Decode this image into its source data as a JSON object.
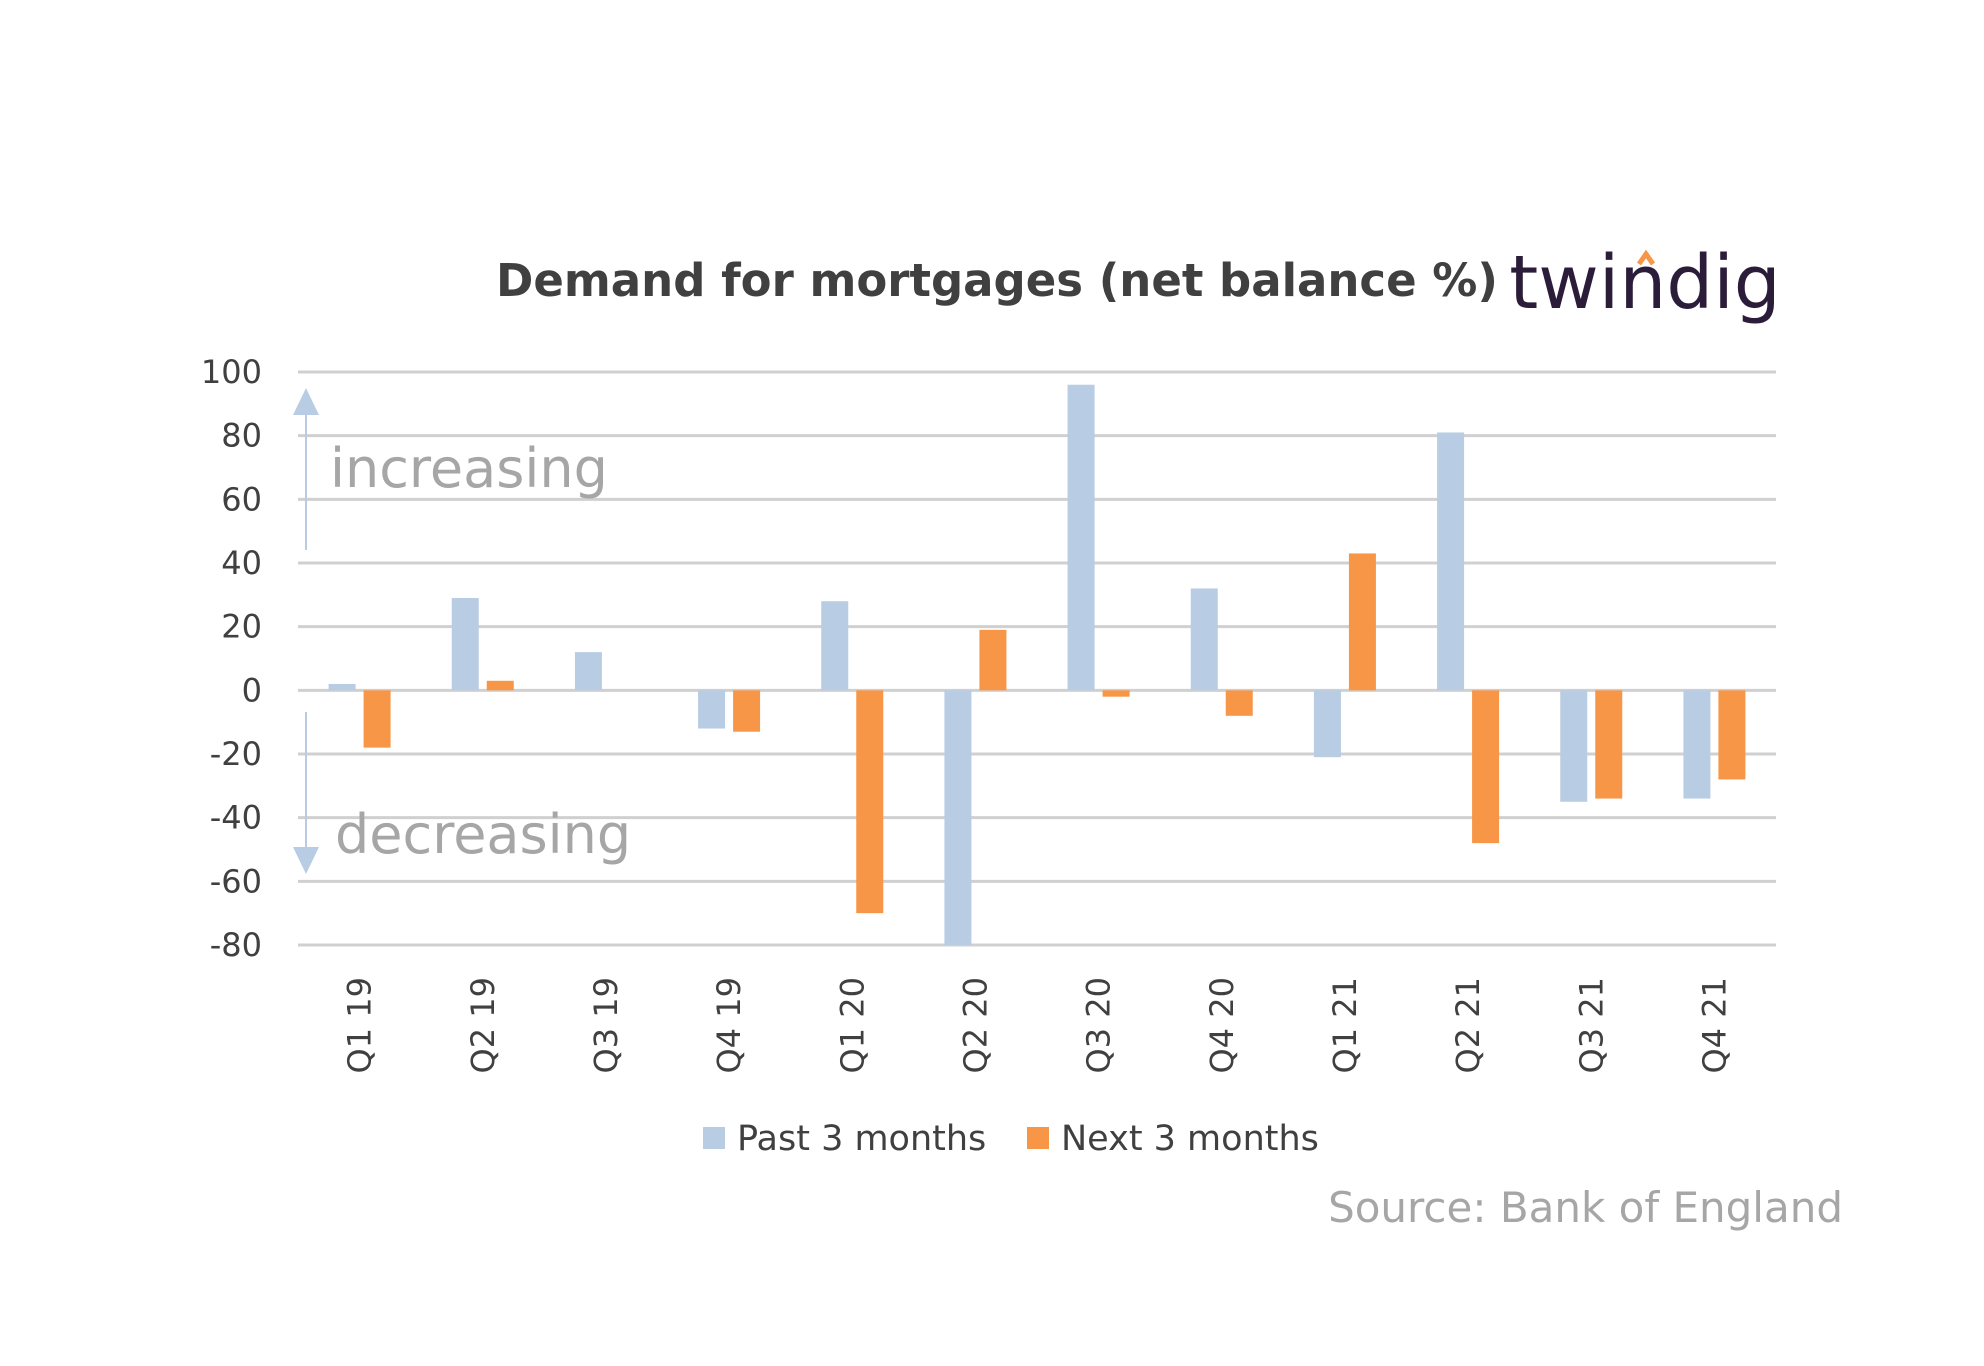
{
  "chart_data": {
    "type": "bar",
    "title": "Demand for mortgages (net balance %)",
    "categories": [
      "Q1 19",
      "Q2 19",
      "Q3 19",
      "Q4 19",
      "Q1 20",
      "Q2 20",
      "Q3 20",
      "Q4 20",
      "Q1 21",
      "Q2 21",
      "Q3 21",
      "Q4 21"
    ],
    "series": [
      {
        "name": "Past 3 months",
        "color": "#b8cce4",
        "values": [
          2,
          29,
          12,
          -12,
          28,
          -80,
          96,
          32,
          -21,
          81,
          -35,
          -34
        ]
      },
      {
        "name": "Next 3 months",
        "color": "#f79646",
        "values": [
          -18,
          3,
          0,
          -13,
          -70,
          19,
          -2,
          -8,
          43,
          -48,
          -34,
          -28
        ]
      }
    ],
    "ylim": [
      -80,
      100
    ],
    "yticks": [
      100,
      80,
      60,
      40,
      20,
      0,
      -20,
      -40,
      -60,
      -80
    ],
    "grid": true,
    "legend": "bottom",
    "annotations": {
      "up": "increasing",
      "down": "decreasing"
    }
  },
  "logo": {
    "text": "twindig",
    "accent": "#f79646"
  },
  "source": "Source: Bank of England"
}
